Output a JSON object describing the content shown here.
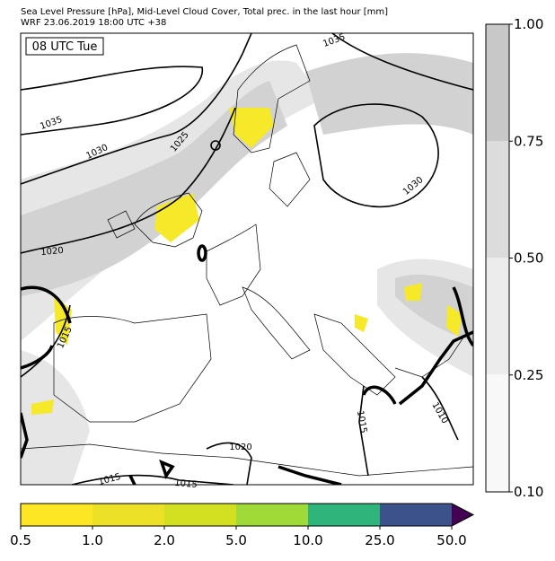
{
  "header": {
    "title": "Sea Level Pressure [hPa], Mid-Level Cloud Cover, Total prec. in the last hour [mm]",
    "subtitle": "WRF 23.06.2019 18:00 UTC +38"
  },
  "map": {
    "time_label": "08 UTC Tue",
    "contour_labels": [
      "1035",
      "1035",
      "1030",
      "1025",
      "1030",
      "1020",
      "1015",
      "1015",
      "1010",
      "1020",
      "1015",
      "1015"
    ]
  },
  "cloud_colorbar": {
    "ticks": [
      "0.10",
      "0.25",
      "0.50",
      "0.75",
      "1.00"
    ]
  },
  "precip_colorbar": {
    "ticks": [
      "0.5",
      "1.0",
      "2.0",
      "5.0",
      "10.0",
      "25.0",
      "50.0"
    ]
  }
}
